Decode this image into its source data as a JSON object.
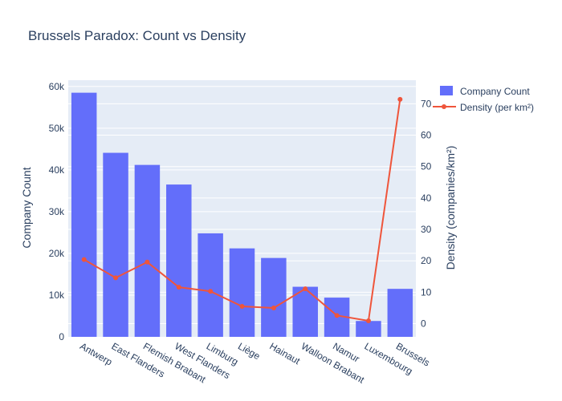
{
  "chart_data": {
    "type": "bar+line",
    "title": "Brussels Paradox: Count vs Density",
    "categories": [
      "Antwerp",
      "East Flanders",
      "Flemish Brabant",
      "West Flanders",
      "Limburg",
      "Liège",
      "Hainaut",
      "Walloon Brabant",
      "Namur",
      "Luxembourg",
      "Brussels"
    ],
    "series": [
      {
        "name": "Company Count",
        "type": "bar",
        "axis": "left",
        "color": "#636efa",
        "values": [
          58500,
          44100,
          41200,
          36500,
          24800,
          21200,
          18900,
          12000,
          9400,
          3800,
          11500
        ]
      },
      {
        "name": "Density (per km²)",
        "type": "line",
        "axis": "right",
        "color": "#ef553b",
        "values": [
          20.4,
          14.6,
          19.6,
          11.6,
          10.3,
          5.5,
          5.0,
          11.1,
          2.6,
          0.9,
          71.4
        ]
      }
    ],
    "ylabel": "Company Count",
    "y2label": "Density (companies/km²)",
    "ylim": [
      0,
      61500
    ],
    "y2lim": [
      -4.2,
      77.5
    ],
    "yticks": [
      0,
      10000,
      20000,
      30000,
      40000,
      50000,
      60000
    ],
    "ytick_labels": [
      "0",
      "10k",
      "20k",
      "30k",
      "40k",
      "50k",
      "60k"
    ],
    "y2ticks": [
      0,
      10,
      20,
      30,
      40,
      50,
      60,
      70
    ],
    "y2tick_labels": [
      "0",
      "10",
      "20",
      "30",
      "40",
      "50",
      "60",
      "70"
    ],
    "grid": true,
    "legend": "top-right",
    "plot_bg": "#e5ecf6"
  }
}
